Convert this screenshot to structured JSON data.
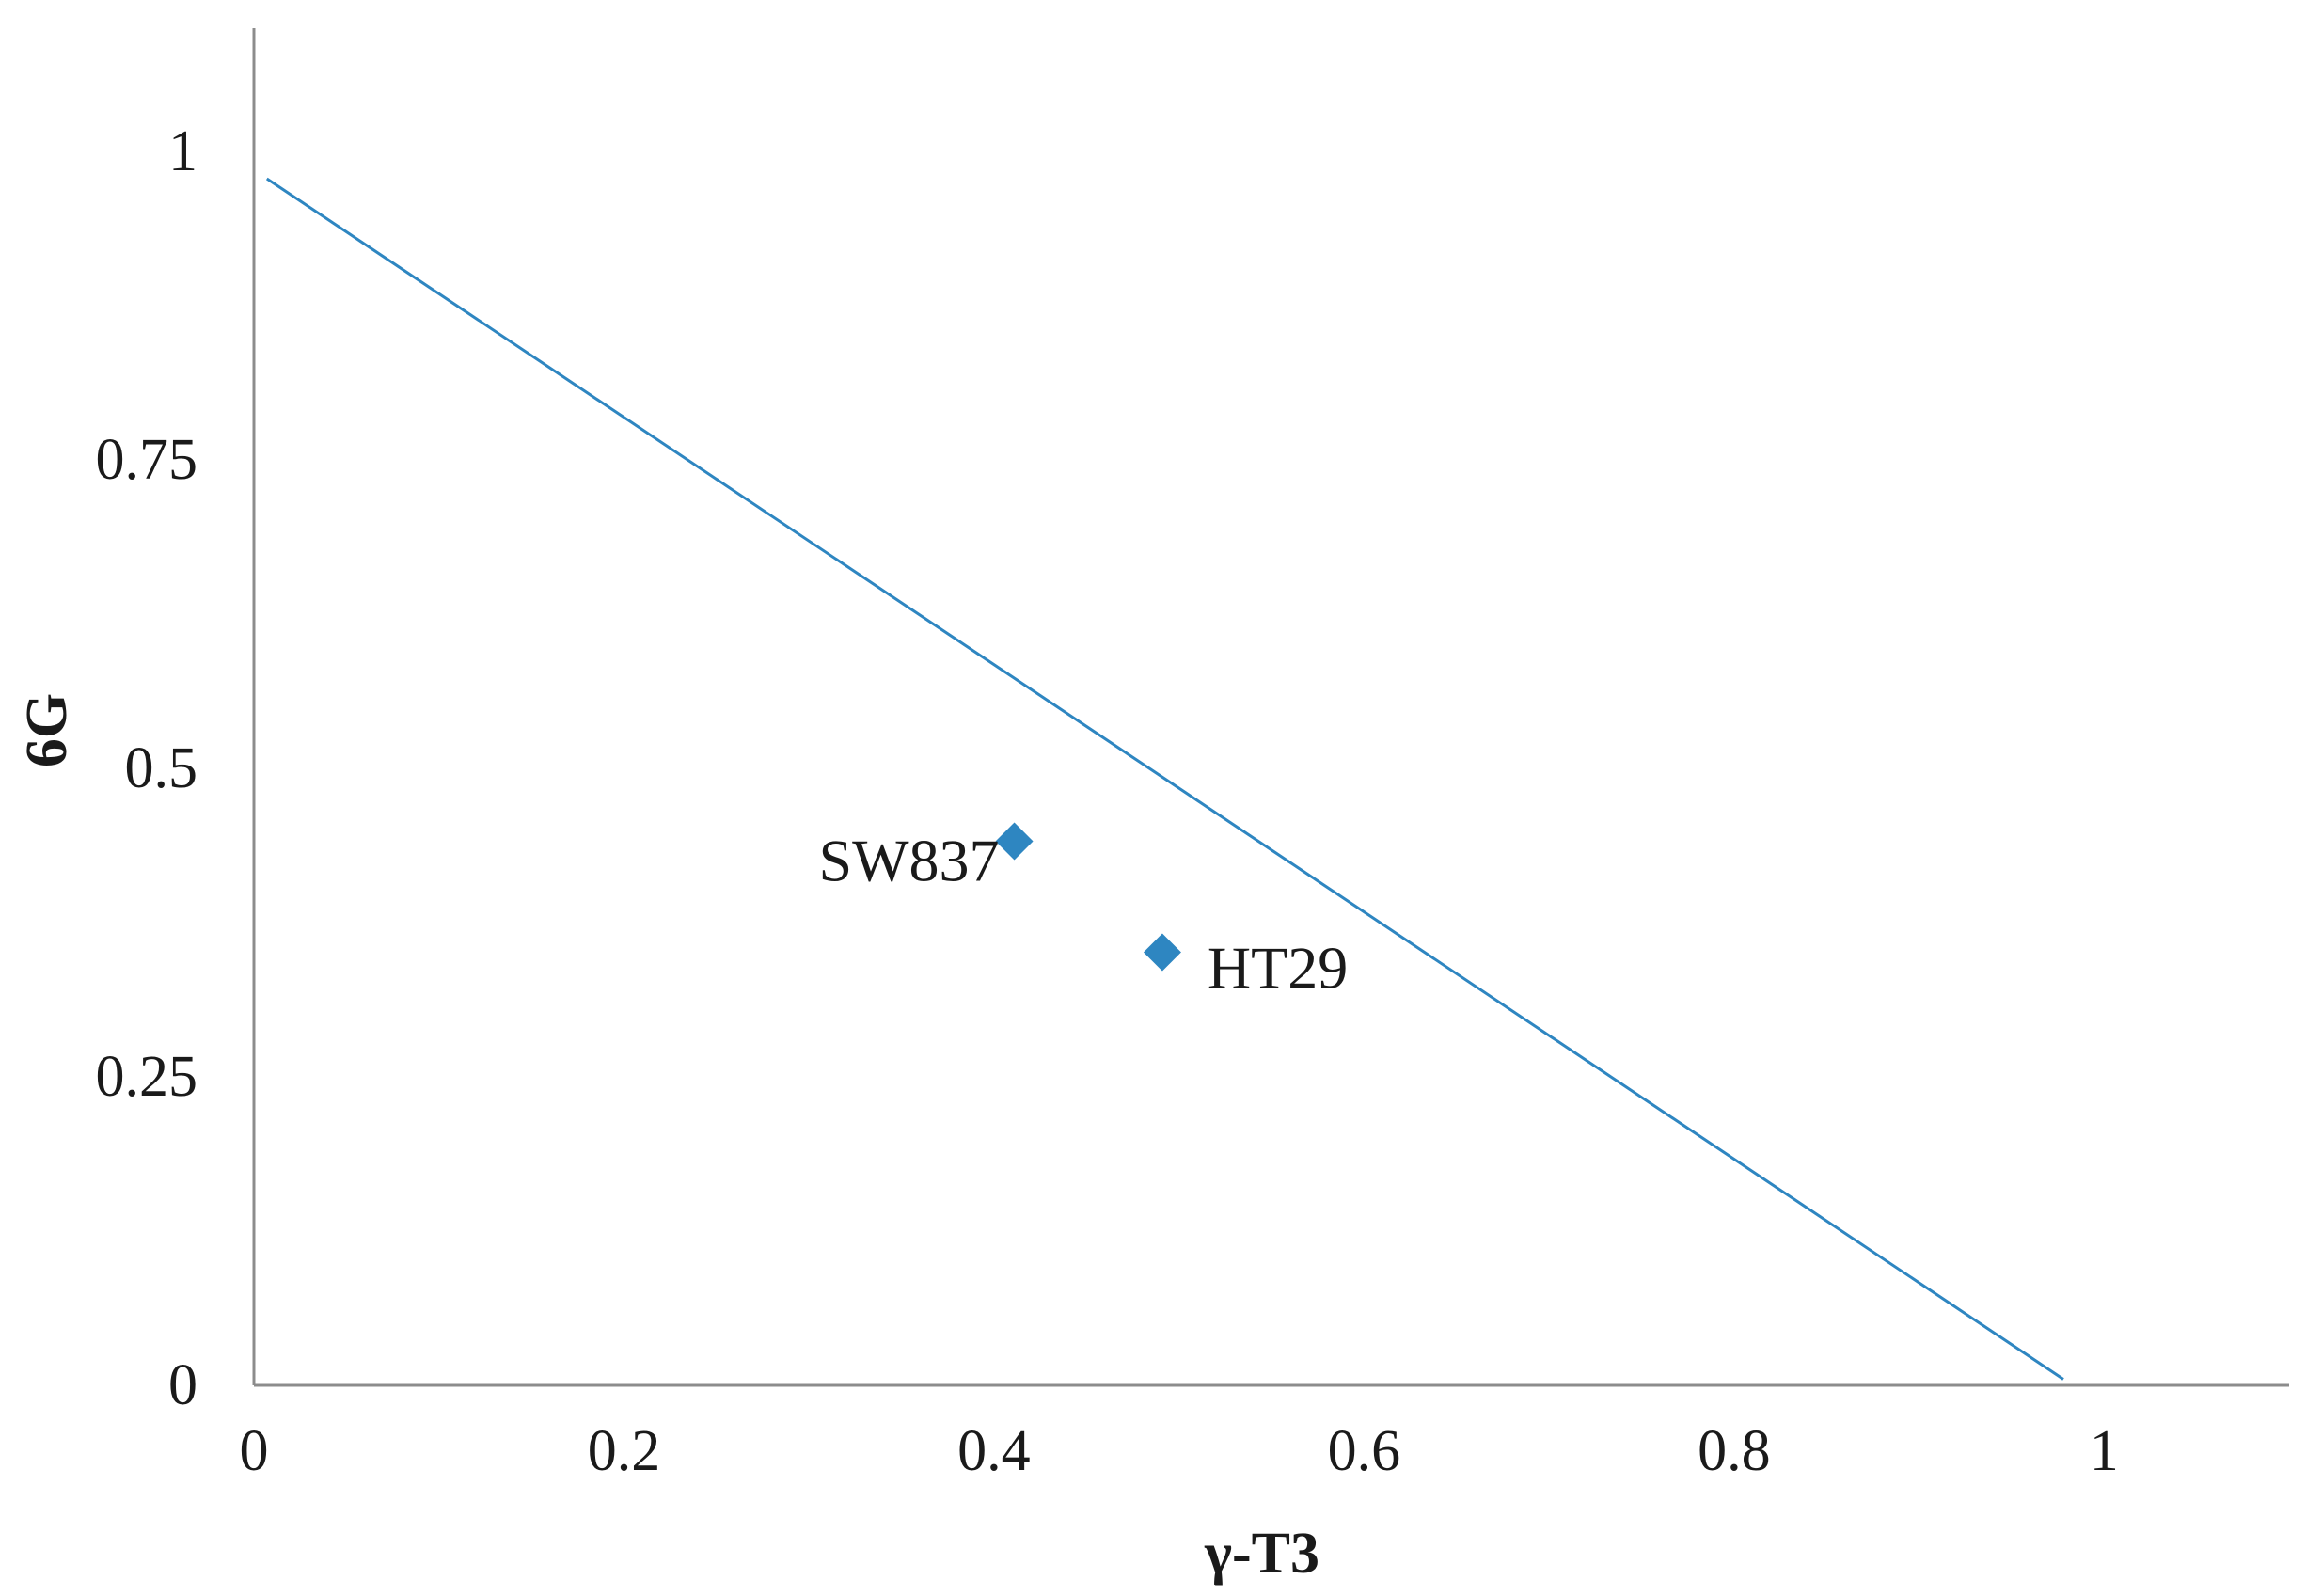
{
  "chart_data": {
    "type": "scatter",
    "title": "",
    "xlabel": "γ-T3",
    "ylabel": "6G",
    "xlim": [
      0,
      1.1
    ],
    "ylim": [
      0,
      1.1
    ],
    "x_ticks": [
      0,
      0.2,
      0.4,
      0.6,
      0.8,
      1
    ],
    "x_tick_labels": [
      "0",
      "0.2",
      "0.4",
      "0.6",
      "0.8",
      "1"
    ],
    "y_ticks": [
      0,
      0.25,
      0.5,
      0.75,
      1
    ],
    "y_tick_labels": [
      "0",
      "0.25",
      "0.5",
      "0.75",
      "1"
    ],
    "grid": false,
    "legend": "none",
    "line": {
      "x": [
        0.007,
        0.978
      ],
      "y": [
        0.978,
        0.005
      ],
      "color": "#2e86c1"
    },
    "points": [
      {
        "label": "SW837",
        "x": 0.411,
        "y": 0.441,
        "color": "#2e86c1",
        "marker": "diamond",
        "label_side": "left"
      },
      {
        "label": "HT29",
        "x": 0.491,
        "y": 0.351,
        "color": "#2e86c1",
        "marker": "diamond",
        "label_side": "right"
      }
    ],
    "axis_color": "#8c8c8c"
  }
}
